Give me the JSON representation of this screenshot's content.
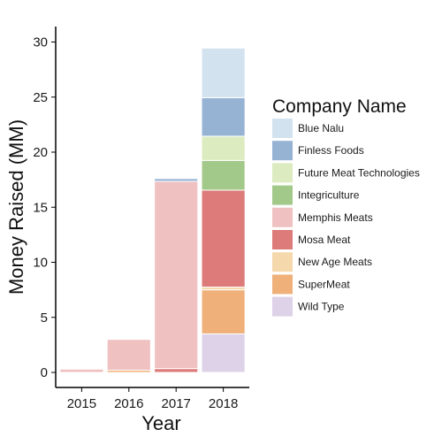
{
  "chart_data": {
    "type": "bar",
    "stacked": true,
    "xlabel": "Year",
    "ylabel": "Money Raised (MM)",
    "categories": [
      "2015",
      "2016",
      "2017",
      "2018"
    ],
    "ylim": [
      0,
      31.5
    ],
    "yticks": [
      0,
      5,
      10,
      15,
      20,
      25,
      30
    ],
    "grid": false,
    "legend_title": "Company Name",
    "legend_position": "right",
    "series": [
      {
        "name": "Blue Nalu",
        "color": "#d3e2ef",
        "values": [
          0,
          0,
          0,
          4.5
        ]
      },
      {
        "name": "Finless Foods",
        "color": "#97b3d4",
        "values": [
          0,
          0,
          0.25,
          3.5
        ]
      },
      {
        "name": "Future Meat Technologies",
        "color": "#dcebc0",
        "values": [
          0,
          0,
          0,
          2.2
        ]
      },
      {
        "name": "Integriculture",
        "color": "#a3c98a",
        "values": [
          0,
          0,
          0,
          2.7
        ]
      },
      {
        "name": "Memphis Meats",
        "color": "#efc1c1",
        "values": [
          0.3,
          2.8,
          17.0,
          0
        ]
      },
      {
        "name": "Mosa Meat",
        "color": "#dd7a7a",
        "values": [
          0,
          0,
          0.35,
          8.8
        ]
      },
      {
        "name": "New Age Meats",
        "color": "#f5d8ac",
        "values": [
          0,
          0,
          0,
          0.25
        ]
      },
      {
        "name": "SuperMeat",
        "color": "#efb07a",
        "values": [
          0,
          0.2,
          0,
          4.0
        ]
      },
      {
        "name": "Wild Type",
        "color": "#ddd2e8",
        "values": [
          0,
          0,
          0,
          3.5
        ]
      }
    ]
  }
}
